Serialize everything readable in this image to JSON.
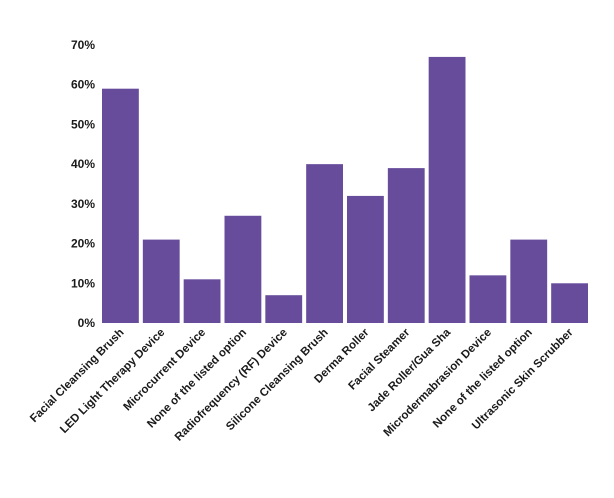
{
  "chart_data": {
    "type": "bar",
    "title": "",
    "xlabel": "",
    "ylabel": "",
    "ylim": [
      0,
      70
    ],
    "yticks": [
      "0%",
      "10%",
      "20%",
      "30%",
      "40%",
      "50%",
      "60%",
      "70%"
    ],
    "grid": false,
    "legend": "none",
    "bar_color": "#674c9b",
    "categories": [
      "Facial Cleansing Brush",
      "LED Light Therapy Device",
      "Microcurrent Device",
      "None of the listed option",
      "Radiofrequency (RF) Device",
      "Silicone Cleansing Brush",
      "Derma Roller",
      "Facial Steamer",
      "Jade Roller/Gua Sha",
      "Microdermabrasion Device",
      "None of the listed option",
      "Ultrasonic Skin Scrubber"
    ],
    "values": [
      59,
      21,
      11,
      27,
      7,
      40,
      32,
      39,
      67,
      12,
      21,
      10
    ],
    "unit": "%"
  }
}
